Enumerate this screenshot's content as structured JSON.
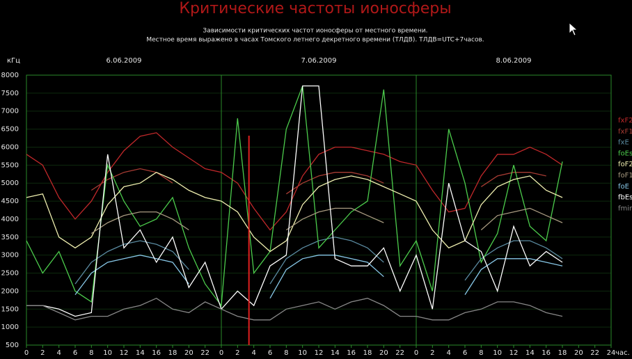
{
  "chart_data": {
    "type": "line",
    "title": "Критические частоты ионосферы",
    "subtitle": [
      "Зависимости критических частот ионосферы от местного времени.",
      "Местное время выражено в часах Томского летнего декретного времени (ТЛДВ). ТЛДВ=UTC+7часов."
    ],
    "y_label": "кГц",
    "x_label": "час.",
    "day_labels": [
      "6.06.2009",
      "7.06.2009",
      "8.06.2009"
    ],
    "x": [
      0,
      2,
      4,
      6,
      8,
      10,
      12,
      14,
      16,
      18,
      20,
      22,
      24,
      26,
      28,
      30,
      32,
      34,
      36,
      38,
      40,
      42,
      44,
      46,
      48,
      50,
      52,
      54,
      56,
      58,
      60,
      62,
      64,
      66
    ],
    "xlim": [
      0,
      72
    ],
    "ylim": [
      500,
      8000
    ],
    "yticks": [
      500,
      1000,
      1500,
      2000,
      2500,
      3000,
      3500,
      4000,
      4500,
      5000,
      5500,
      6000,
      6500,
      7000,
      7500,
      8000
    ],
    "xticks": [
      0,
      2,
      4,
      6,
      8,
      10,
      12,
      14,
      16,
      18,
      20,
      22,
      {
        "value": 24,
        "label": "0"
      },
      {
        "value": 26,
        "label": "2"
      },
      {
        "value": 28,
        "label": "4"
      },
      {
        "value": 30,
        "label": "6"
      },
      {
        "value": 32,
        "label": "8"
      },
      {
        "value": 34,
        "label": "10"
      },
      {
        "value": 36,
        "label": "12"
      },
      {
        "value": 38,
        "label": "14"
      },
      {
        "value": 40,
        "label": "16"
      },
      {
        "value": 42,
        "label": "18"
      },
      {
        "value": 44,
        "label": "20"
      },
      {
        "value": 46,
        "label": "22"
      },
      {
        "value": 48,
        "label": "0"
      },
      {
        "value": 50,
        "label": "2"
      },
      {
        "value": 52,
        "label": "4"
      },
      {
        "value": 54,
        "label": "6"
      },
      {
        "value": 56,
        "label": "8"
      },
      {
        "value": 58,
        "label": "10"
      },
      {
        "value": 60,
        "label": "12"
      },
      {
        "value": 62,
        "label": "14"
      },
      {
        "value": 64,
        "label": "16"
      },
      {
        "value": 66,
        "label": "18"
      },
      {
        "value": 68,
        "label": "20"
      },
      {
        "value": 70,
        "label": "22"
      },
      {
        "value": 72,
        "label": "24"
      }
    ],
    "grid": true,
    "cursor_x": 27.4,
    "cursor_color": "#e02020",
    "series": [
      {
        "name": "fxF2",
        "color": "#c0282a",
        "values": [
          5800,
          5500,
          4600,
          4000,
          4500,
          5300,
          5900,
          6300,
          6400,
          6000,
          5700,
          5400,
          5300,
          5000,
          4300,
          3700,
          4200,
          5200,
          5800,
          6000,
          6000,
          5900,
          5800,
          5600,
          5500,
          4800,
          4200,
          4300,
          5200,
          5800,
          5800,
          6000,
          5800,
          5500
        ]
      },
      {
        "name": "fxF1",
        "color": "#a83c34",
        "values": [
          null,
          null,
          null,
          null,
          4800,
          5100,
          5300,
          5400,
          5300,
          5000,
          null,
          null,
          null,
          null,
          null,
          null,
          4700,
          5000,
          5200,
          5300,
          5300,
          5200,
          5000,
          null,
          null,
          null,
          null,
          null,
          4900,
          5200,
          5300,
          5300,
          5200,
          null
        ]
      },
      {
        "name": "fxE",
        "color": "#5a8aa0",
        "values": [
          null,
          null,
          null,
          2200,
          2800,
          3100,
          3300,
          3400,
          3300,
          3100,
          2600,
          null,
          null,
          null,
          null,
          2200,
          2900,
          3200,
          3400,
          3500,
          3400,
          3200,
          2800,
          null,
          null,
          null,
          null,
          2300,
          2900,
          3200,
          3400,
          3400,
          3200,
          2900
        ]
      },
      {
        "name": "foEs",
        "color": "#4ccc4c",
        "values": [
          3400,
          2500,
          3100,
          2000,
          1700,
          5500,
          4500,
          3800,
          4000,
          4600,
          3200,
          2200,
          1600,
          6800,
          2500,
          3100,
          6500,
          7700,
          3200,
          3700,
          4200,
          4500,
          7600,
          2700,
          3400,
          2000,
          6500,
          5000,
          2800,
          3600,
          5500,
          3800,
          3400,
          5600
        ]
      },
      {
        "name": "foF2",
        "color": "#f0f0b0",
        "values": [
          4600,
          4700,
          3500,
          3200,
          3500,
          4400,
          4900,
          5000,
          5300,
          5100,
          4800,
          4600,
          4500,
          4200,
          3500,
          3100,
          3400,
          4400,
          4900,
          5100,
          5200,
          5100,
          4900,
          4700,
          4500,
          3700,
          3200,
          3400,
          4400,
          4900,
          5100,
          5200,
          4800,
          4600
        ]
      },
      {
        "name": "foF1",
        "color": "#a89a80",
        "values": [
          null,
          null,
          null,
          null,
          3600,
          3900,
          4100,
          4200,
          4200,
          4000,
          3700,
          null,
          null,
          null,
          null,
          null,
          3700,
          4000,
          4200,
          4300,
          4300,
          4100,
          3900,
          null,
          null,
          null,
          null,
          null,
          3700,
          4100,
          4200,
          4300,
          4100,
          3900
        ]
      },
      {
        "name": "foE",
        "color": "#88c8e8",
        "values": [
          null,
          null,
          null,
          1900,
          2500,
          2800,
          2900,
          3000,
          2900,
          2800,
          2200,
          null,
          null,
          null,
          null,
          1800,
          2600,
          2900,
          3000,
          3000,
          2900,
          2800,
          2400,
          null,
          null,
          null,
          null,
          1900,
          2600,
          2900,
          2900,
          2900,
          2800,
          2700
        ]
      },
      {
        "name": "fbEs",
        "color": "#ffffff",
        "values": [
          1600,
          1600,
          1500,
          1300,
          1400,
          5800,
          3200,
          3700,
          2800,
          3500,
          2100,
          2800,
          1500,
          2000,
          1600,
          2700,
          3000,
          7700,
          7700,
          2900,
          2700,
          2700,
          3200,
          2000,
          3000,
          1500,
          5000,
          3400,
          3100,
          2000,
          3800,
          2700,
          3100,
          2800
        ]
      },
      {
        "name": "fmin",
        "color": "#888888",
        "values": [
          1600,
          1600,
          1400,
          1200,
          1300,
          1300,
          1500,
          1600,
          1800,
          1500,
          1400,
          1700,
          1500,
          1300,
          1200,
          1200,
          1500,
          1600,
          1700,
          1500,
          1700,
          1800,
          1600,
          1300,
          1300,
          1200,
          1200,
          1400,
          1500,
          1700,
          1700,
          1600,
          1400,
          1300
        ]
      }
    ]
  }
}
